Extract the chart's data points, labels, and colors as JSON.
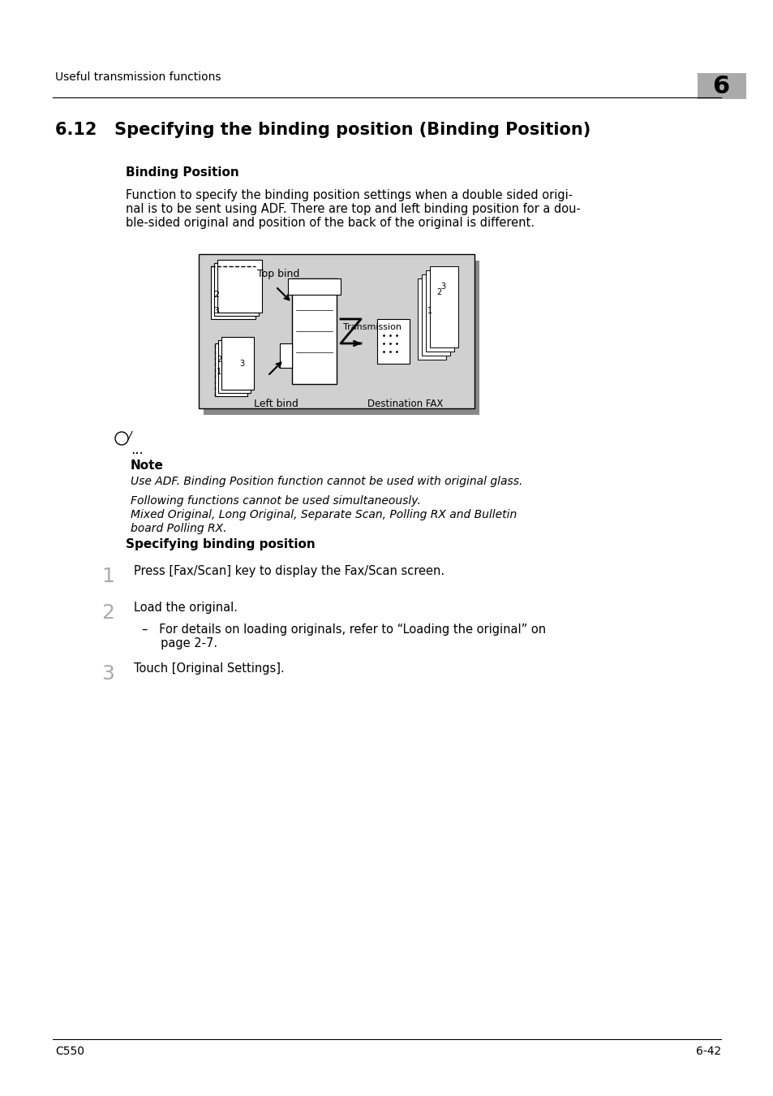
{
  "page_bg": "#ffffff",
  "header_text": "Useful transmission functions",
  "header_chapter": "6",
  "section_title": "6.12   Specifying the binding position (Binding Position)",
  "subsection1_bold": "Binding Position",
  "body_text": "Function to specify the binding position settings when a double sided origi-\nnal is to be sent using ADF. There are top and left binding position for a dou-\nble-sided original and position of the back of the original is different.",
  "note_label": "Note",
  "note_dots": "...",
  "note_italic1": "Use ADF. Binding Position function cannot be used with original glass.",
  "note_italic2": "Following functions cannot be used simultaneously.\nMixed Original, Long Original, Separate Scan, Polling RX and Bulletin\nboard Polling RX.",
  "subsection2_bold": "Specifying binding position",
  "step1_num": "1",
  "step1_text": "Press [Fax/Scan] key to display the Fax/Scan screen.",
  "step2_num": "2",
  "step2_text": "Load the original.",
  "step2_sub": "–   For details on loading originals, refer to “Loading the original” on\n     page 2-7.",
  "step3_num": "3",
  "step3_text": "Touch [Original Settings].",
  "footer_left": "C550",
  "footer_right": "6-42",
  "diagram_bg": "#d0d0d0",
  "diagram_border": "#000000",
  "text_color": "#000000"
}
